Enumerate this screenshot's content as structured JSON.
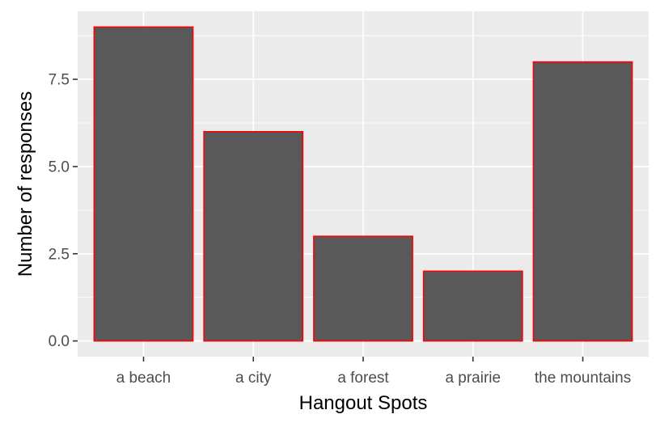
{
  "chart_data": {
    "type": "bar",
    "title": "",
    "xlabel": "Hangout Spots",
    "ylabel": "Number of responses",
    "categories": [
      "a beach",
      "a city",
      "a forest",
      "a prairie",
      "the mountains"
    ],
    "values": [
      9,
      6,
      3,
      2,
      8
    ],
    "ylim": [
      -0.45,
      9.45
    ],
    "yticks": [
      0,
      2.5,
      5,
      7.5
    ],
    "ytick_labels": [
      "0.0",
      "2.5",
      "5.0",
      "7.5"
    ],
    "grid": true,
    "legend": "none",
    "colors": {
      "panel_background": "#ebebeb",
      "grid": "#ffffff",
      "bar_fill": "#595959",
      "bar_outline": "#ff0000",
      "tick_text": "#4d4d4d",
      "axis_title_text": "#000000"
    }
  }
}
